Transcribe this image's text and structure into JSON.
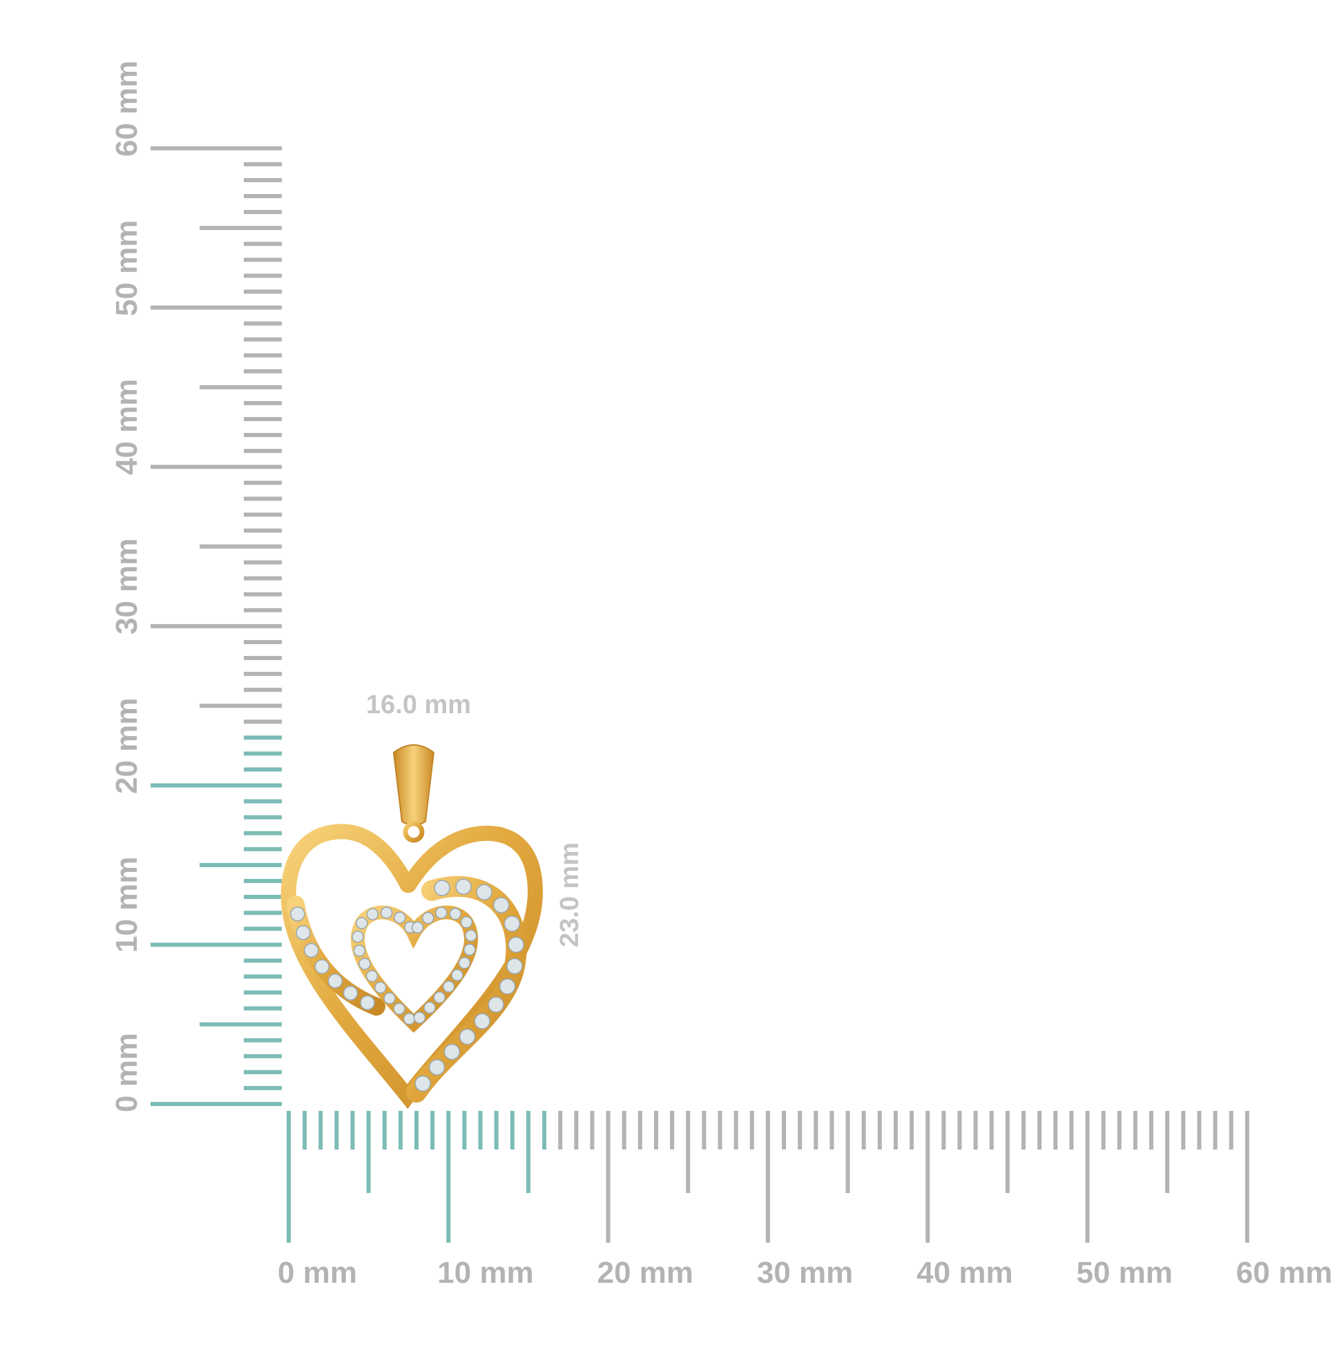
{
  "vertical_ruler": {
    "labels": [
      "0 mm",
      "10 mm",
      "20 mm",
      "30 mm",
      "40 mm",
      "50 mm",
      "60 mm"
    ],
    "range_mm": [
      0,
      60
    ],
    "highlight_to_mm": 23
  },
  "horizontal_ruler": {
    "labels": [
      "0 mm",
      "10 mm",
      "20 mm",
      "30 mm",
      "40 mm",
      "50 mm",
      "60 mm"
    ],
    "range_mm": [
      0,
      60
    ],
    "highlight_to_mm": 16
  },
  "dimensions": {
    "width_label": "16.0 mm",
    "height_label": "23.0 mm"
  },
  "product": {
    "description_icon": "gold-heart-pendant"
  },
  "colors": {
    "tick_gray": "#b3b3b3",
    "tick_highlight": "#7dbcb6",
    "label_gray": "#b3b3b3",
    "dimension_label": "#c4c4c4",
    "gold": "#e6b04a"
  }
}
